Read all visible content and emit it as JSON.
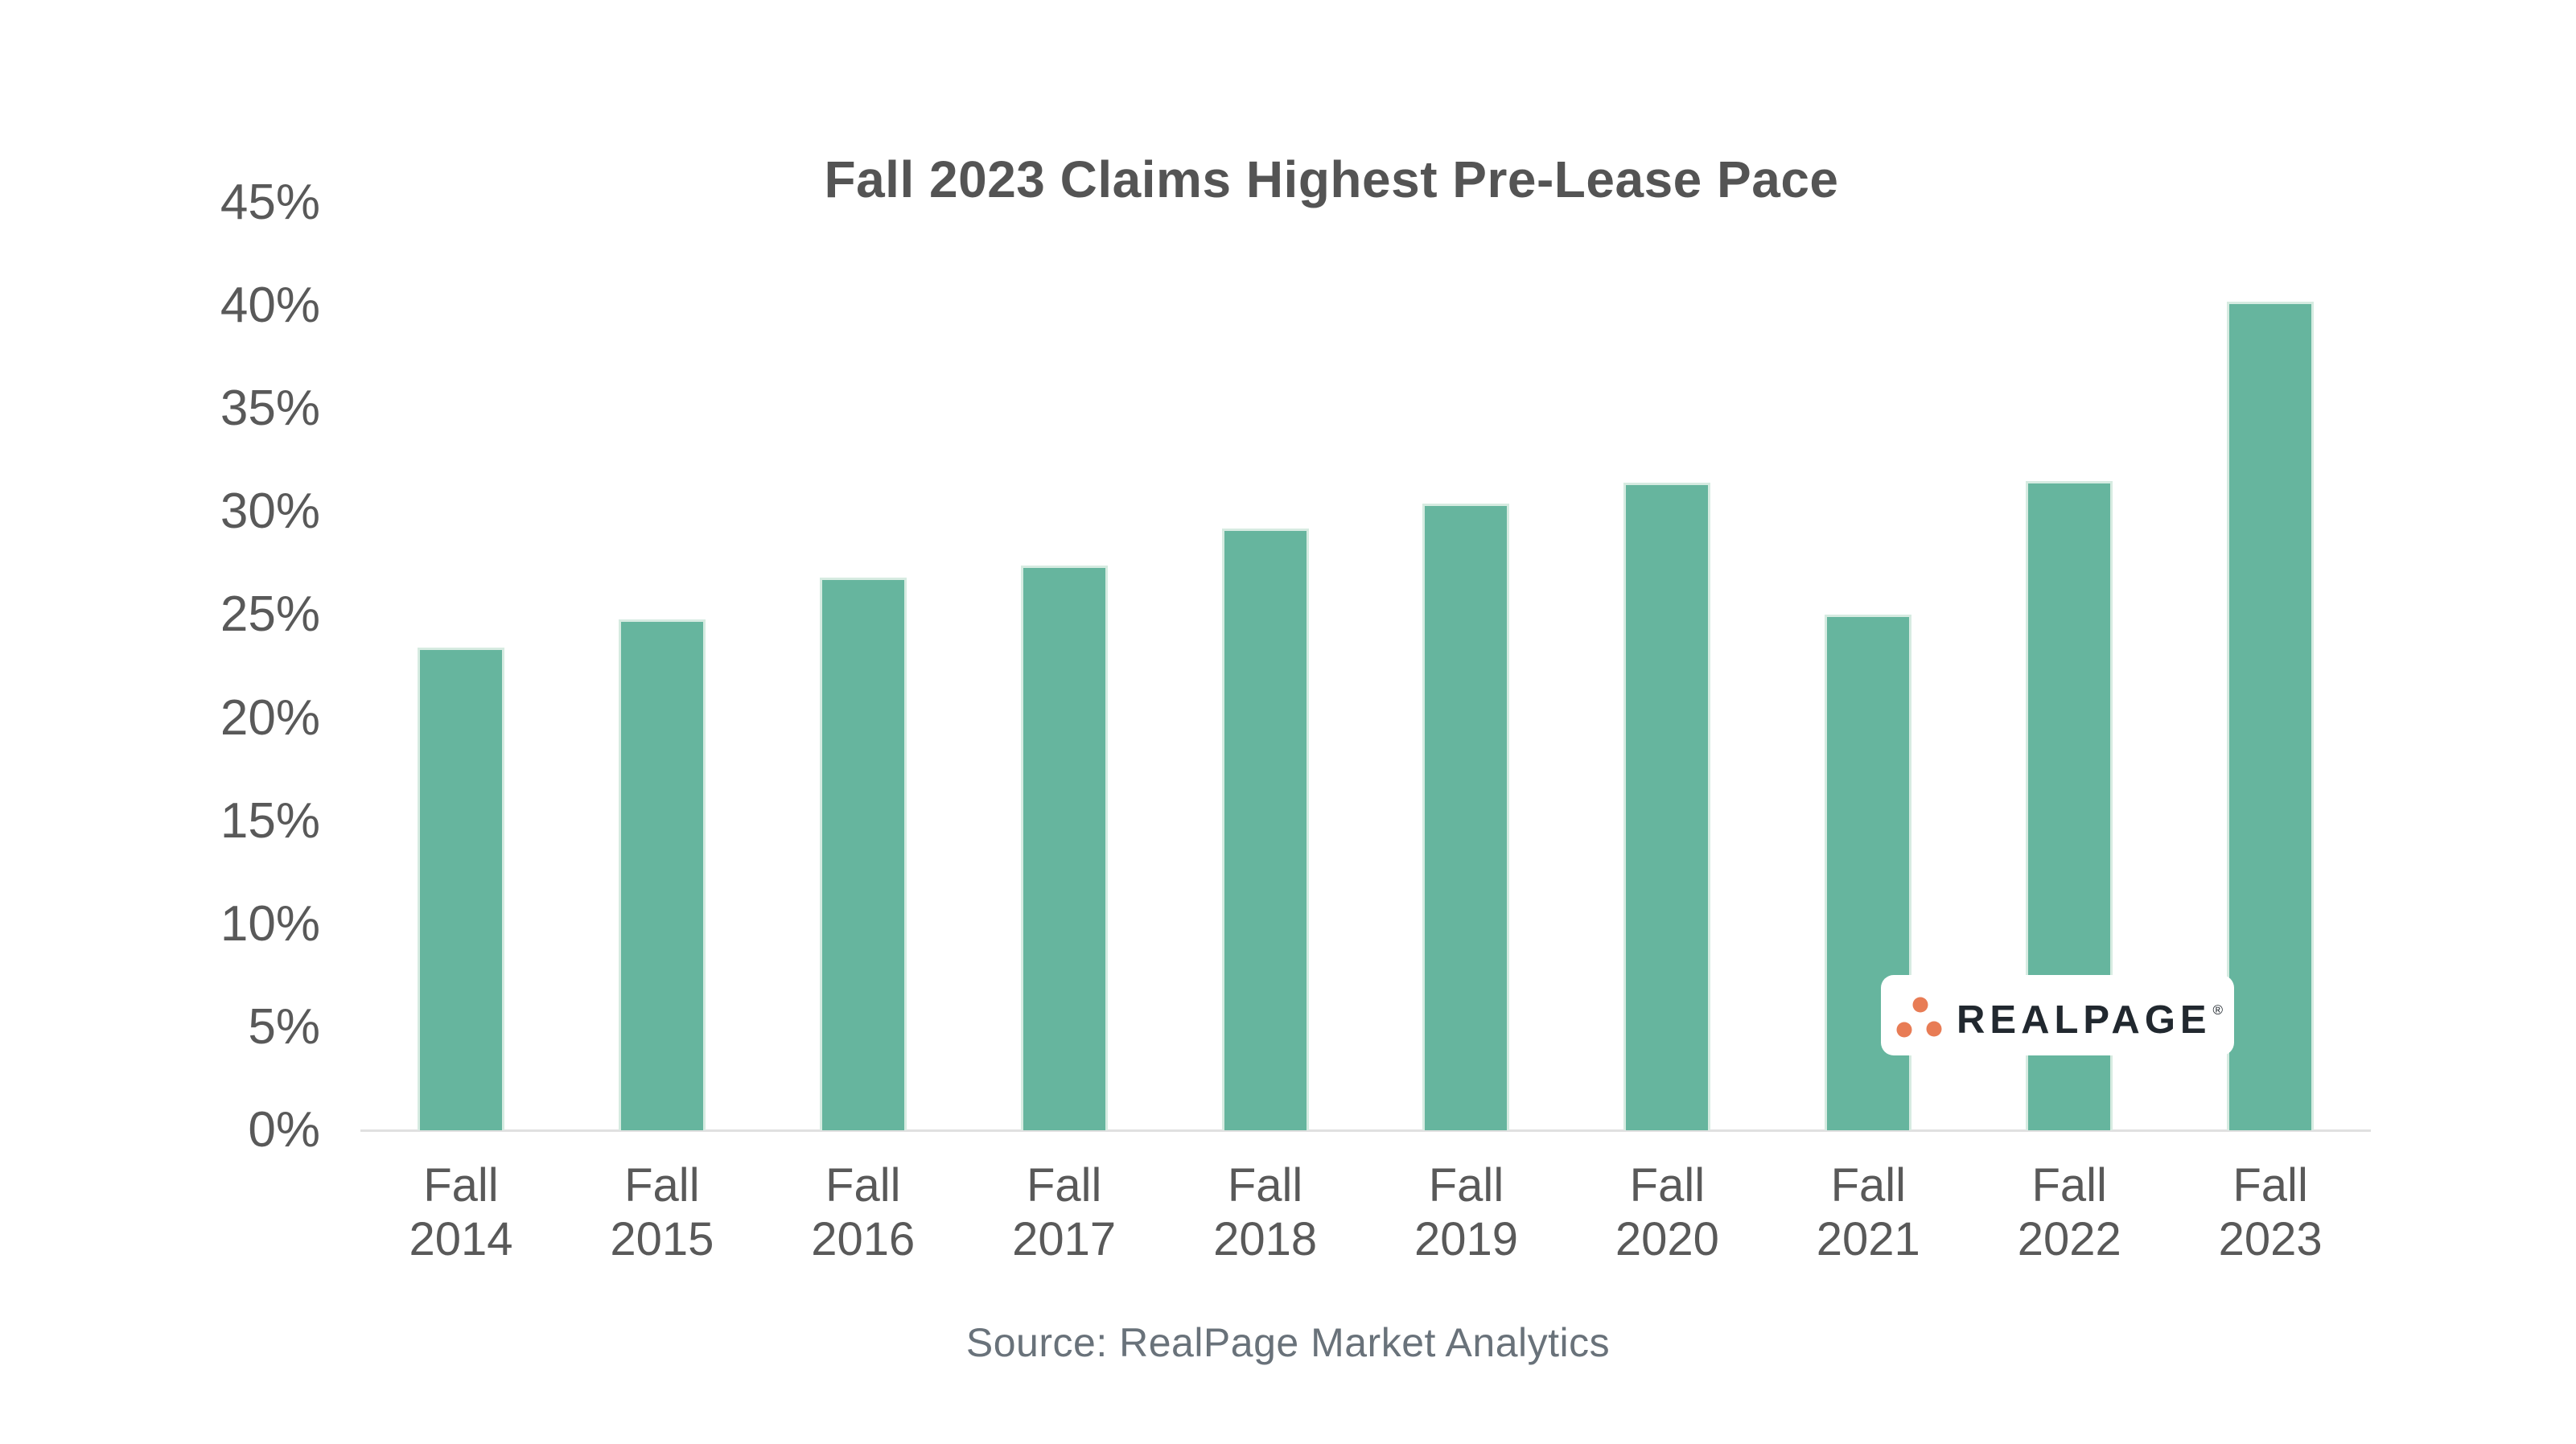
{
  "chart_data": {
    "type": "bar",
    "title": "Fall 2023 Claims Highest Pre-Lease Pace",
    "categories": [
      "Fall 2014",
      "Fall 2015",
      "Fall 2016",
      "Fall 2017",
      "Fall 2018",
      "Fall 2019",
      "Fall 2020",
      "Fall 2021",
      "Fall 2022",
      "Fall 2023"
    ],
    "values": [
      23.4,
      24.8,
      26.8,
      27.4,
      29.2,
      30.4,
      31.4,
      25.0,
      31.5,
      40.2
    ],
    "xlabel": "",
    "ylabel": "",
    "ylim": [
      0,
      45
    ],
    "ytick_step": 5,
    "ytick_labels": [
      "0%",
      "5%",
      "10%",
      "15%",
      "20%",
      "25%",
      "30%",
      "35%",
      "40%",
      "45%"
    ],
    "grid": false,
    "legend": "none",
    "bar_color": "#66b59e"
  },
  "source_note": "Source: RealPage Market Analytics",
  "logo": {
    "brand": "REALPAGE",
    "registered_mark": "®",
    "dot_color": "#e87c55",
    "text_color": "#21282f"
  },
  "colors": {
    "bar_fill": "#66b59e",
    "bar_stroke": "#d6ebe1",
    "axis_line": "#e0e0e0",
    "title_text": "#545454",
    "tick_text": "#595959",
    "source_text": "#69727a"
  }
}
